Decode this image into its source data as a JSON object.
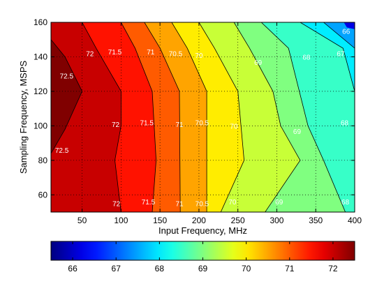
{
  "chart_data": {
    "type": "contour",
    "title": "",
    "xlabel": "Input Frequency, MHz",
    "ylabel": "Sampling Frequency, MSPS",
    "xlim": [
      10,
      400
    ],
    "ylim": [
      50,
      160
    ],
    "xticks": [
      "50",
      "100",
      "150",
      "200",
      "250",
      "300",
      "350",
      "400"
    ],
    "yticks": [
      "60",
      "80",
      "100",
      "120",
      "140",
      "160"
    ],
    "grid": true,
    "colormap": "jet",
    "colorbar": {
      "placement": "bottom",
      "range": [
        65.5,
        72.5
      ],
      "ticks": [
        "66",
        "67",
        "68",
        "69",
        "70",
        "71",
        "72"
      ]
    },
    "levels": [
      66,
      66.5,
      67,
      67.5,
      68,
      68.5,
      69,
      69.5,
      70,
      70.5,
      71,
      71.5,
      72,
      72.5
    ],
    "region_fill_levels": [
      72.5,
      72,
      71.5,
      71,
      70.5,
      70,
      69.5,
      69,
      68.5,
      68,
      67.5,
      67,
      66.5,
      66
    ],
    "contour_lines": [
      {
        "level": 72.5,
        "points": [
          [
            10,
            150
          ],
          [
            28,
            140
          ],
          [
            50,
            120
          ],
          [
            28,
            98
          ],
          [
            10,
            84
          ]
        ]
      },
      {
        "level": 72,
        "points": [
          [
            50,
            160
          ],
          [
            68,
            145
          ],
          [
            100,
            120
          ],
          [
            100,
            100
          ],
          [
            92,
            80
          ],
          [
            100,
            50
          ]
        ]
      },
      {
        "level": 71.5,
        "points": [
          [
            100,
            160
          ],
          [
            118,
            145
          ],
          [
            140,
            120
          ],
          [
            145,
            80
          ],
          [
            140,
            50
          ]
        ]
      },
      {
        "level": 71,
        "points": [
          [
            130,
            160
          ],
          [
            150,
            145
          ],
          [
            175,
            120
          ],
          [
            176,
            50
          ]
        ]
      },
      {
        "level": 70.5,
        "points": [
          [
            165,
            160
          ],
          [
            185,
            145
          ],
          [
            210,
            120
          ],
          [
            210,
            50
          ]
        ]
      },
      {
        "level": 70,
        "points": [
          [
            200,
            160
          ],
          [
            220,
            145
          ],
          [
            250,
            120
          ],
          [
            258,
            80
          ],
          [
            228,
            50
          ]
        ]
      },
      {
        "level": 69.5,
        "points": [
          [
            245,
            160
          ],
          [
            265,
            145
          ],
          [
            295,
            120
          ],
          [
            305,
            100
          ],
          [
            330,
            80
          ],
          [
            285,
            50
          ]
        ]
      },
      {
        "level": 69,
        "points": [
          [
            280,
            160
          ],
          [
            315,
            145
          ],
          [
            340,
            100
          ],
          [
            360,
            80
          ],
          [
            388,
            50
          ]
        ]
      },
      {
        "level": 68.5,
        "points": [
          [
            330,
            160
          ],
          [
            385,
            145
          ],
          [
            400,
            120
          ]
        ]
      },
      {
        "level": 68,
        "points": [
          [
            360,
            160
          ],
          [
            400,
            145
          ]
        ]
      }
    ],
    "contour_labels": [
      {
        "text": "72",
        "x": 60,
        "y": 142
      },
      {
        "text": "71.5",
        "x": 92,
        "y": 143
      },
      {
        "text": "71",
        "x": 138,
        "y": 143
      },
      {
        "text": "70.5",
        "x": 170,
        "y": 142
      },
      {
        "text": "70",
        "x": 200,
        "y": 141
      },
      {
        "text": "69",
        "x": 276,
        "y": 137
      },
      {
        "text": "68",
        "x": 338,
        "y": 140
      },
      {
        "text": "67",
        "x": 382,
        "y": 142
      },
      {
        "text": "66",
        "x": 389,
        "y": 155
      },
      {
        "text": "72.5",
        "x": 30,
        "y": 129
      },
      {
        "text": "72",
        "x": 93,
        "y": 101
      },
      {
        "text": "71.5",
        "x": 133,
        "y": 102
      },
      {
        "text": "71",
        "x": 175,
        "y": 101
      },
      {
        "text": "70.5",
        "x": 204,
        "y": 102
      },
      {
        "text": "70",
        "x": 245,
        "y": 100
      },
      {
        "text": "69",
        "x": 326,
        "y": 97
      },
      {
        "text": "68",
        "x": 387,
        "y": 102
      },
      {
        "text": "72.5",
        "x": 24,
        "y": 86
      },
      {
        "text": "72",
        "x": 94,
        "y": 55
      },
      {
        "text": "71.5",
        "x": 135,
        "y": 56
      },
      {
        "text": "71",
        "x": 175,
        "y": 55
      },
      {
        "text": "70.5",
        "x": 204,
        "y": 55
      },
      {
        "text": "70",
        "x": 243,
        "y": 56
      },
      {
        "text": "69",
        "x": 303,
        "y": 56
      },
      {
        "text": "68",
        "x": 388,
        "y": 56
      }
    ]
  }
}
